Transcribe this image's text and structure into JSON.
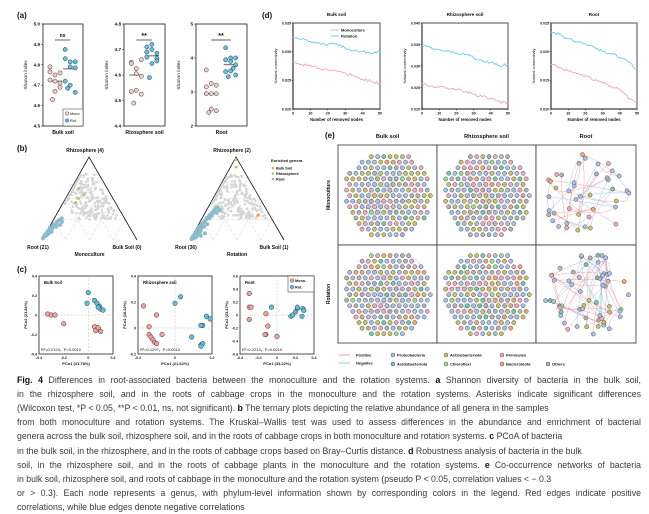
{
  "colors": {
    "mono": "#f6c9c9",
    "rot": "#5fc3e4",
    "mono_line": "#f4a3a8",
    "rot_line": "#63c9e8",
    "positive": "#f29aa0",
    "negative": "#8cc8ec",
    "grey": "#d5d5d5",
    "enr_bulk": "#f0a060",
    "enr_rhizo": "#a8c880",
    "enr_root": "#8bbccc"
  },
  "panel_a": {
    "label": "(a)",
    "ylabel": "Shanon index",
    "legend": [
      "Mono.",
      "Rot."
    ],
    "plots": [
      {
        "xlabel": "Bulk soil",
        "ylim": [
          4.5,
          5.0
        ],
        "ticks": [
          "4.5",
          "4.6",
          "4.7",
          "4.8",
          "4.9",
          "5.0"
        ],
        "sig": "ns",
        "mono": [
          4.79,
          4.75,
          4.76,
          4.765,
          4.72,
          4.71,
          4.725,
          4.67,
          4.69,
          4.63
        ],
        "rot": [
          4.875,
          4.815,
          4.815,
          4.83,
          4.79,
          4.785,
          4.72,
          4.7,
          4.665,
          4.685
        ],
        "median": [
          4.72,
          4.78
        ]
      },
      {
        "xlabel": "Rizosphere soil",
        "ylim": [
          4.4,
          4.8
        ],
        "ticks": [
          "4.4",
          "4.5",
          "4.6",
          "4.7",
          "4.8"
        ],
        "sig": "**",
        "mono": [
          4.65,
          4.625,
          4.66,
          4.645,
          4.605,
          4.595,
          4.535,
          4.54,
          4.525,
          4.49
        ],
        "rot": [
          4.71,
          4.72,
          4.685,
          4.69,
          4.7,
          4.665,
          4.67,
          4.645,
          4.655,
          4.59
        ],
        "median": [
          4.6,
          4.675
        ]
      },
      {
        "xlabel": "Root",
        "ylim": [
          2,
          5
        ],
        "ticks": [
          "2",
          "3",
          "4",
          "5"
        ],
        "sig": "**",
        "mono": [
          3.65,
          3.25,
          3.2,
          3.15,
          2.95,
          2.95,
          2.95,
          2.5,
          2.45,
          2.4
        ],
        "rot": [
          4.3,
          4.0,
          4.0,
          3.95,
          3.9,
          3.8,
          3.6,
          3.62,
          3.5,
          3.45,
          3.7
        ],
        "median": [
          2.95,
          3.8
        ]
      }
    ]
  },
  "panel_d": {
    "label": "(d)",
    "ylabel": "Natural connectivity",
    "xlabel": "Number of removed nodes",
    "legend": [
      "Monoculture",
      "Rotation"
    ],
    "x": [
      0,
      5,
      10,
      15,
      20,
      25,
      30,
      35,
      40,
      45,
      50
    ],
    "xticks": [
      "0",
      "10",
      "20",
      "30",
      "40",
      "50"
    ],
    "plots": [
      {
        "title": "Bulk soil",
        "ylim": [
          0.02,
          0.035
        ],
        "ticks": [
          "0.020",
          "0.025",
          "0.030",
          "0.035"
        ],
        "mono": [
          0.0282,
          0.0278,
          0.0276,
          0.0271,
          0.0268,
          0.0266,
          0.0263,
          0.0258,
          0.0252,
          0.0248,
          0.0245
        ],
        "rot": [
          0.0325,
          0.0322,
          0.0318,
          0.0315,
          0.0312,
          0.0314,
          0.0306,
          0.0302,
          0.03,
          0.0296,
          0.03
        ]
      },
      {
        "title": "Rhizosphere soil",
        "ylim": [
          0.02,
          0.04
        ],
        "ticks": [
          "0.020",
          "0.025",
          "0.030",
          "0.035",
          "0.040"
        ],
        "mono": [
          0.0258,
          0.0254,
          0.0251,
          0.0249,
          0.0245,
          0.024,
          0.0234,
          0.0229,
          0.0224,
          0.0218,
          0.0212
        ],
        "rot": [
          0.0347,
          0.0343,
          0.0338,
          0.0336,
          0.033,
          0.0326,
          0.0319,
          0.0313,
          0.0308,
          0.03,
          0.0303
        ]
      },
      {
        "title": "Root",
        "ylim": [
          0.01,
          0.025
        ],
        "ticks": [
          "0.010",
          "0.015",
          "0.020",
          "0.025"
        ],
        "mono": [
          0.0178,
          0.0173,
          0.0166,
          0.0162,
          0.0158,
          0.015,
          0.0145,
          0.014,
          0.0135,
          0.0118,
          null
        ],
        "rot": [
          0.0234,
          0.023,
          0.0222,
          0.0218,
          0.0214,
          0.0208,
          0.02,
          0.0196,
          0.019,
          0.0182,
          0.017
        ]
      }
    ]
  },
  "panel_b": {
    "label": "(b)",
    "legend_title": "Enriched genera",
    "legend": [
      "Bulk Soil",
      "Rhizosphere",
      "Root"
    ],
    "plots": [
      {
        "title": "Monoculture",
        "top": "Rhizosphere (4)",
        "left": "Root (21)",
        "right": "Bulk Soil (0)",
        "rhizo": [
          [
            0.3,
            0.62,
            0.08
          ],
          [
            0.28,
            0.55,
            0.17
          ],
          [
            0.36,
            0.5,
            0.14
          ],
          [
            0.42,
            0.45,
            0.13
          ]
        ],
        "root": [
          [
            0.98,
            0.02,
            0
          ],
          [
            0.96,
            0.04,
            0
          ],
          [
            0.94,
            0.05,
            0.01
          ],
          [
            0.93,
            0.07,
            0
          ],
          [
            0.92,
            0.06,
            0.02
          ],
          [
            0.9,
            0.09,
            0.01
          ],
          [
            0.89,
            0.08,
            0.03
          ],
          [
            0.88,
            0.11,
            0.01
          ],
          [
            0.86,
            0.12,
            0.02
          ],
          [
            0.85,
            0.1,
            0.05
          ],
          [
            0.84,
            0.15,
            0.01
          ],
          [
            0.82,
            0.14,
            0.04
          ],
          [
            0.8,
            0.17,
            0.03
          ],
          [
            0.78,
            0.19,
            0.03
          ],
          [
            0.77,
            0.16,
            0.07
          ],
          [
            0.75,
            0.2,
            0.05
          ],
          [
            0.73,
            0.22,
            0.05
          ],
          [
            0.72,
            0.18,
            0.1
          ],
          [
            0.7,
            0.24,
            0.06
          ],
          [
            0.68,
            0.22,
            0.1
          ],
          [
            0.66,
            0.26,
            0.08
          ]
        ],
        "bulk": []
      },
      {
        "title": "Rotation",
        "top": "Rhizosphere (2)",
        "left": "Root (36)",
        "right": "Bulk Soil (1)",
        "rhizo": [
          [
            0.02,
            0.97,
            0.01
          ],
          [
            0.06,
            0.88,
            0.06
          ]
        ],
        "root": [
          [
            0.98,
            0.01,
            0.01
          ],
          [
            0.96,
            0.03,
            0.01
          ],
          [
            0.95,
            0.02,
            0.03
          ],
          [
            0.94,
            0.05,
            0.01
          ],
          [
            0.93,
            0.03,
            0.04
          ],
          [
            0.92,
            0.06,
            0.02
          ],
          [
            0.91,
            0.04,
            0.05
          ],
          [
            0.9,
            0.08,
            0.02
          ],
          [
            0.89,
            0.06,
            0.05
          ],
          [
            0.88,
            0.1,
            0.02
          ],
          [
            0.87,
            0.07,
            0.06
          ],
          [
            0.86,
            0.12,
            0.02
          ],
          [
            0.85,
            0.09,
            0.06
          ],
          [
            0.84,
            0.14,
            0.02
          ],
          [
            0.83,
            0.11,
            0.06
          ],
          [
            0.82,
            0.16,
            0.02
          ],
          [
            0.8,
            0.15,
            0.05
          ],
          [
            0.78,
            0.19,
            0.03
          ],
          [
            0.77,
            0.16,
            0.07
          ],
          [
            0.75,
            0.21,
            0.04
          ],
          [
            0.73,
            0.22,
            0.05
          ],
          [
            0.72,
            0.19,
            0.09
          ],
          [
            0.7,
            0.25,
            0.05
          ],
          [
            0.68,
            0.27,
            0.05
          ],
          [
            0.66,
            0.26,
            0.08
          ],
          [
            0.64,
            0.3,
            0.06
          ],
          [
            0.62,
            0.29,
            0.09
          ],
          [
            0.6,
            0.33,
            0.07
          ],
          [
            0.58,
            0.33,
            0.09
          ],
          [
            0.56,
            0.36,
            0.08
          ],
          [
            0.55,
            0.33,
            0.12
          ],
          [
            0.53,
            0.38,
            0.09
          ],
          [
            0.51,
            0.39,
            0.1
          ],
          [
            0.5,
            0.36,
            0.14
          ],
          [
            0.86,
            0.05,
            0.09
          ],
          [
            0.8,
            0.08,
            0.12
          ]
        ],
        "bulk": [
          [
            0.12,
            0.3,
            0.58
          ]
        ]
      }
    ]
  },
  "panel_c": {
    "label": "(c)",
    "legend": [
      "Mono.",
      "Rot."
    ],
    "plots": [
      {
        "title": "Bulk Soil",
        "xlabel": "PCo1 (31.78%)",
        "ylabel": "PCo2 (21.81%)",
        "stat": "R²=0.2124，P=0.0010",
        "xlim": [
          -0.4,
          0.2
        ],
        "ylim": [
          -0.4,
          0.4
        ],
        "xticks": [
          -0.4,
          -0.2,
          0,
          0.2
        ],
        "yticks": [
          -0.4,
          -0.2,
          0,
          0.2,
          0.4
        ],
        "mono": [
          [
            -0.33,
            0.01
          ],
          [
            -0.3,
            0.0
          ],
          [
            -0.27,
            0.0
          ],
          [
            -0.2,
            -0.09
          ],
          [
            0.05,
            -0.12
          ],
          [
            0.07,
            -0.15
          ],
          [
            0.08,
            -0.14
          ],
          [
            0.1,
            -0.17
          ],
          [
            0.06,
            -0.16
          ],
          [
            0.08,
            -0.13
          ]
        ],
        "rot": [
          [
            0.0,
            0.23
          ],
          [
            -0.01,
            0.12
          ],
          [
            0.05,
            0.15
          ],
          [
            0.07,
            0.12
          ],
          [
            0.09,
            0.09
          ],
          [
            0.1,
            0.06
          ],
          [
            0.12,
            0.05
          ],
          [
            0.08,
            0.08
          ]
        ]
      },
      {
        "title": "Rhizosphere soil",
        "xlabel": "PCo1 (21.62%)",
        "ylabel": "PCo2 (16.32%)",
        "stat": "R²=0.1297，P=0.0010",
        "xlim": [
          -0.2,
          0.2
        ],
        "ylim": [
          -0.2,
          0.4
        ],
        "xticks": [
          -0.2,
          0,
          0.2
        ],
        "yticks": [
          -0.2,
          0,
          0.2,
          0.4
        ],
        "mono": [
          [
            -0.17,
            0.17
          ],
          [
            -0.14,
            0.01
          ],
          [
            -0.1,
            0.1
          ],
          [
            -0.14,
            -0.05
          ],
          [
            -0.13,
            -0.07
          ],
          [
            -0.12,
            -0.09
          ],
          [
            -0.11,
            -0.11
          ],
          [
            -0.1,
            -0.12
          ],
          [
            -0.07,
            -0.05
          ]
        ],
        "rot": [
          [
            0.0,
            0.19
          ],
          [
            0.03,
            0.24
          ],
          [
            0.15,
            0.02
          ],
          [
            0.14,
            0.02
          ],
          [
            0.17,
            0.09
          ],
          [
            0.19,
            0.07
          ],
          [
            0.09,
            -0.07
          ],
          [
            0.14,
            -0.13
          ],
          [
            0.15,
            -0.12
          ],
          [
            0.14,
            -0.14
          ]
        ]
      },
      {
        "title": "Root",
        "xlabel": "PCo1 (33.22%)",
        "ylabel": "PCo2 (23.17%)",
        "stat": "R²=0.2213，P=0.0010",
        "xlim": [
          -0.4,
          0.4
        ],
        "ylim": [
          -0.6,
          0.6
        ],
        "xticks": [
          -0.4,
          -0.2,
          0,
          0.2,
          0.4
        ],
        "yticks": [
          -0.6,
          -0.4,
          -0.2,
          0,
          0.2,
          0.4,
          0.6
        ],
        "mono": [
          [
            -0.3,
            0.33
          ],
          [
            -0.3,
            0.12
          ],
          [
            -0.28,
            0.12
          ],
          [
            -0.3,
            -0.07
          ],
          [
            -0.12,
            0.02
          ],
          [
            -0.1,
            -0.17
          ],
          [
            -0.12,
            -0.3
          ],
          [
            -0.13,
            -0.3
          ],
          [
            0.0,
            -0.33
          ]
        ],
        "rot": [
          [
            -0.06,
            0.12
          ],
          [
            0.15,
            -0.02
          ],
          [
            0.17,
            0.0
          ],
          [
            0.2,
            0.05
          ],
          [
            0.22,
            0.1
          ],
          [
            0.22,
            0.12
          ],
          [
            0.27,
            -0.02
          ],
          [
            0.28,
            0.1
          ],
          [
            0.29,
            0.07
          ]
        ]
      }
    ]
  },
  "panel_e": {
    "label": "(e)",
    "columns": [
      "Bulk soil",
      "Rhizosphere soil",
      "Root"
    ],
    "rows": [
      "Monoculture",
      "Rotation"
    ],
    "edge_legend": [
      {
        "label": "Positive",
        "color": "#f29aa0"
      },
      {
        "label": "Negative",
        "color": "#8cc8ec"
      }
    ],
    "phyla": [
      {
        "label": "Proteobacteria",
        "color": "#a9c1ea"
      },
      {
        "label": "Actinobacteriota",
        "color": "#c9c463"
      },
      {
        "label": "Firmicutes",
        "color": "#f2a9bb"
      },
      {
        "label": "Acidobacteriota",
        "color": "#6fcaa9"
      },
      {
        "label": "Chloroflexi",
        "color": "#93e38f"
      },
      {
        "label": "Bacteroidota",
        "color": "#f1a66e"
      },
      {
        "label": "Others",
        "color": "#b9b1b1"
      }
    ]
  },
  "caption": {
    "lines": [
      [
        {
          "b": "Fig. 4"
        },
        {
          "t": "  Differences in root-associated bacteria between the monoculture and the rotation systems. "
        },
        {
          "b": "a"
        },
        {
          "t": " Shannon diversity of bacteria in the bulk soil,"
        }
      ],
      [
        {
          "t": "in the rhizosphere soil, and in the roots of cabbage crops in the monoculture and the rotation systems. Asterisks indicate significant differences"
        }
      ],
      [
        {
          "t": "(Wilcoxon test, *P < 0.05, **P < 0.01, ns, not significant). "
        },
        {
          "b": "b"
        },
        {
          "t": " The ternary plots depicting the relative abundance of all genera in the samples"
        }
      ],
      [
        {
          "t": "from both monoculture and rotation systems. The Kruskal–Wallis test was used to assess differences in the abundance and enrichment of bacterial"
        }
      ],
      [
        {
          "t": "genera across the bulk soil, rhizosphere soil, and in the roots of cabbage crops in both monoculture and rotation systems. "
        },
        {
          "b": "c"
        },
        {
          "t": " PCoA of bacteria"
        }
      ],
      [
        {
          "t": "in the bulk soil, in the rhizosphere, and in the roots of cabbage crops based on Bray–Curtis distance. "
        },
        {
          "b": "d"
        },
        {
          "t": " Robustness analysis of bacteria in the bulk"
        }
      ],
      [
        {
          "t": "soil, in the rhizosphere soil, and in the roots of cabbage plants in the monoculture and the rotation systems. "
        },
        {
          "b": "e"
        },
        {
          "t": " Co-occurrence networks of bacteria"
        }
      ],
      [
        {
          "t": "in bulk soil, rhizosphere soil, and roots of cabbage in the monoculture and the rotation system (pseudo P < 0.05, correlation values < − 0.3"
        }
      ],
      [
        {
          "t": "or > 0.3). Each node represents a genus, with phylum-level information shown by corresponding colors in the legend. Red edges indicate positive"
        }
      ],
      [
        {
          "t": "correlations, while blue edges denote negative correlations"
        }
      ]
    ]
  }
}
